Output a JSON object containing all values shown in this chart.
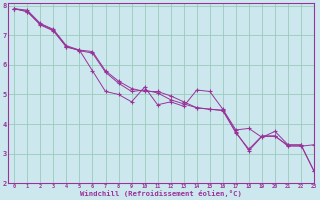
{
  "xlabel": "Windchill (Refroidissement éolien,°C)",
  "bg_color": "#cce8ee",
  "line_color": "#993399",
  "grid_color": "#99ccbb",
  "xlim": [
    -0.5,
    23
  ],
  "ylim": [
    2,
    8.1
  ],
  "xticks": [
    0,
    1,
    2,
    3,
    4,
    5,
    6,
    7,
    8,
    9,
    10,
    11,
    12,
    13,
    14,
    15,
    16,
    17,
    18,
    19,
    20,
    21,
    22,
    23
  ],
  "yticks": [
    2,
    3,
    4,
    5,
    6,
    7,
    8
  ],
  "line1_x": [
    0,
    1,
    2,
    3,
    4,
    5,
    6,
    7,
    8,
    9,
    10,
    11,
    12,
    13,
    14,
    15,
    16,
    17,
    18,
    19,
    20,
    21,
    22,
    23
  ],
  "line1_y": [
    7.9,
    7.8,
    7.35,
    7.15,
    6.6,
    6.5,
    5.8,
    5.1,
    5.0,
    4.75,
    5.25,
    4.65,
    4.75,
    4.6,
    5.15,
    5.1,
    4.5,
    3.8,
    3.85,
    3.55,
    3.75,
    3.3,
    3.3,
    2.4
  ],
  "line2_x": [
    0,
    1,
    2,
    3,
    4,
    5,
    6,
    7,
    8,
    9,
    10,
    11,
    12,
    13,
    14,
    15,
    16,
    17,
    18,
    19,
    20,
    21,
    22,
    23
  ],
  "line2_y": [
    7.9,
    7.85,
    7.4,
    7.2,
    6.65,
    6.5,
    6.45,
    5.8,
    5.45,
    5.2,
    5.1,
    5.1,
    4.95,
    4.75,
    4.55,
    4.5,
    4.45,
    3.7,
    3.15,
    3.6,
    3.6,
    3.25,
    3.25,
    3.3
  ],
  "line3_x": [
    0,
    1,
    2,
    3,
    4,
    5,
    6,
    7,
    8,
    9,
    10,
    11,
    12,
    13,
    14,
    15,
    16,
    17,
    18,
    19,
    20,
    21,
    22,
    23
  ],
  "line3_y": [
    7.9,
    7.8,
    7.38,
    7.18,
    6.62,
    6.48,
    6.4,
    5.75,
    5.38,
    5.1,
    5.15,
    5.05,
    4.82,
    4.68,
    4.55,
    4.5,
    4.47,
    3.73,
    3.1,
    3.58,
    3.58,
    3.28,
    3.28,
    2.4
  ]
}
